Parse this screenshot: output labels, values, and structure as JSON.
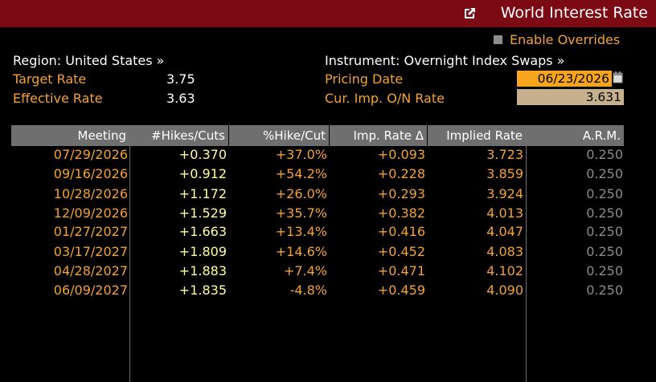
{
  "window": {
    "title": "World Interest Rate",
    "accent": "#7b0a14"
  },
  "overrides": {
    "label": "Enable Overrides",
    "checked": false
  },
  "left": {
    "region": "Region: United States »",
    "target_rate_label": "Target Rate",
    "target_rate_value": "3.75",
    "effective_rate_label": "Effective Rate",
    "effective_rate_value": "3.63"
  },
  "right": {
    "instrument": "Instrument: Overnight Index Swaps »",
    "pricing_date_label": "Pricing Date",
    "pricing_date_value": "06/23/2026",
    "cur_imp_label": "Cur. Imp. O/N Rate",
    "cur_imp_value": "3.631"
  },
  "table": {
    "headers": [
      "Meeting",
      "#Hikes/Cuts",
      "%Hike/Cut",
      "Imp. Rate Δ",
      "Implied Rate",
      "A.R.M."
    ],
    "rows": [
      [
        "07/29/2026",
        "+0.370",
        "+37.0%",
        "+0.093",
        "3.723",
        "0.250"
      ],
      [
        "09/16/2026",
        "+0.912",
        "+54.2%",
        "+0.228",
        "3.859",
        "0.250"
      ],
      [
        "10/28/2026",
        "+1.172",
        "+26.0%",
        "+0.293",
        "3.924",
        "0.250"
      ],
      [
        "12/09/2026",
        "+1.529",
        "+35.7%",
        "+0.382",
        "4.013",
        "0.250"
      ],
      [
        "01/27/2027",
        "+1.663",
        "+13.4%",
        "+0.416",
        "4.047",
        "0.250"
      ],
      [
        "03/17/2027",
        "+1.809",
        "+14.6%",
        "+0.452",
        "4.083",
        "0.250"
      ],
      [
        "04/28/2027",
        "+1.883",
        "+7.4%",
        "+0.471",
        "4.102",
        "0.250"
      ],
      [
        "06/09/2027",
        "+1.835",
        "-4.8%",
        "+0.459",
        "4.090",
        "0.250"
      ]
    ]
  }
}
